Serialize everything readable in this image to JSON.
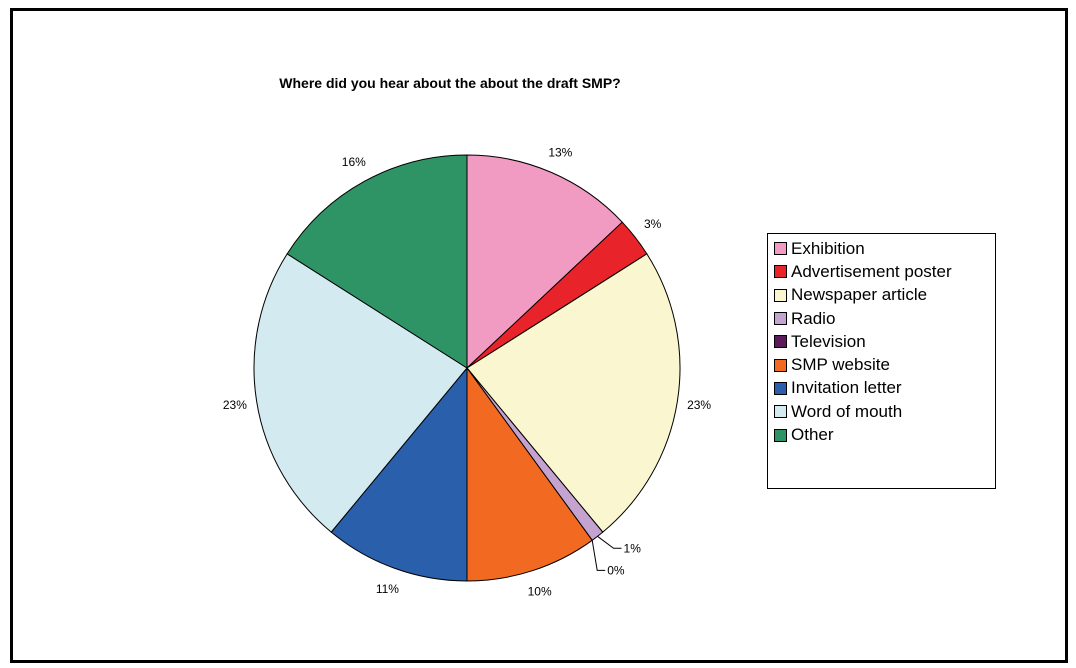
{
  "chart_data": {
    "type": "pie",
    "title": "Where did you hear about the about the draft SMP?",
    "categories": [
      "Exhibition",
      "Advertisement poster",
      "Newspaper article",
      "Radio",
      "Television",
      "SMP website",
      "Invitation letter",
      "Word of mouth",
      "Other"
    ],
    "values": [
      13,
      3,
      23,
      1,
      0,
      10,
      11,
      23,
      16
    ],
    "labels": [
      "13%",
      "3%",
      "23%",
      "1%",
      "0%",
      "10%",
      "11%",
      "23%",
      "16%"
    ],
    "colors": [
      "#F19AC2",
      "#E8232A",
      "#FAF6CF",
      "#C4A3D0",
      "#5B1A5B",
      "#F26A21",
      "#2A5FAC",
      "#D3EAF0",
      "#2F9465"
    ],
    "legend_position": "right"
  }
}
